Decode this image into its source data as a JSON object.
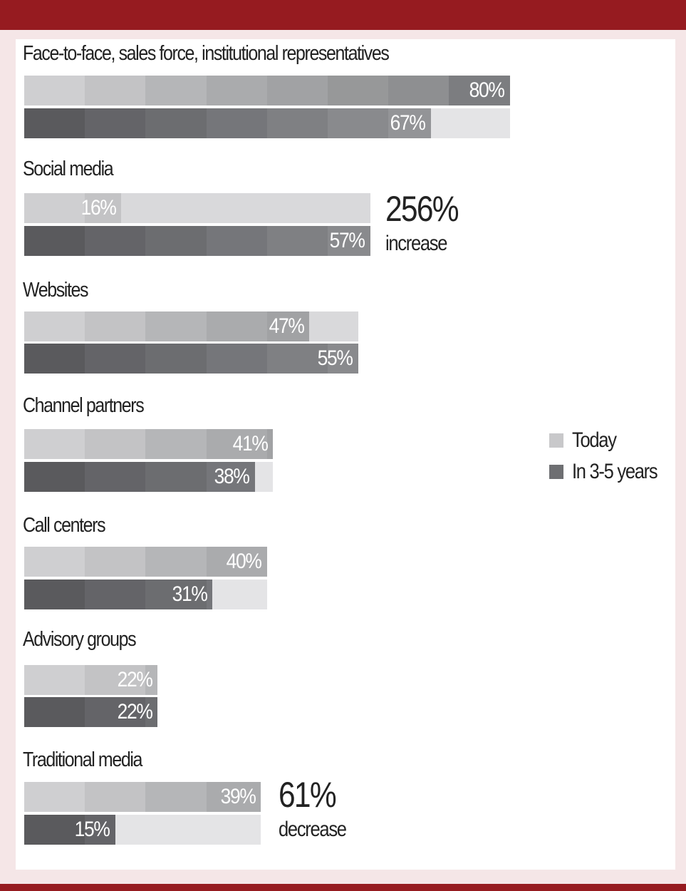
{
  "colors": {
    "brand": "#961b20",
    "today": "#cfcfd1",
    "future": "#6e6f72"
  },
  "legend": [
    {
      "label": "Today",
      "color": "#c8c8ca"
    },
    {
      "label": "In 3-5 years",
      "color": "#6e6f72"
    }
  ],
  "chart_data": {
    "type": "bar",
    "orientation": "horizontal",
    "categories": [
      "Face-to-face, sales force, institutional representatives",
      "Social media",
      "Websites",
      "Channel partners",
      "Call centers",
      "Advisory groups",
      "Traditional media"
    ],
    "series": [
      {
        "name": "Today",
        "values": [
          80,
          16,
          47,
          41,
          40,
          22,
          39
        ],
        "labels": [
          "80%",
          "16%",
          "47%",
          "41%",
          "40%",
          "22%",
          "39%"
        ]
      },
      {
        "name": "In 3-5 years",
        "values": [
          67,
          57,
          55,
          38,
          31,
          22,
          15
        ],
        "labels": [
          "67%",
          "57%",
          "55%",
          "38%",
          "31%",
          "22%",
          "15%"
        ]
      }
    ],
    "annotations": [
      {
        "category": "Social media",
        "value": "256%",
        "text": "increase"
      },
      {
        "category": "Traditional media",
        "value": "61%",
        "text": "decrease"
      }
    ],
    "xlim": [
      0,
      100
    ],
    "legend_position": "right"
  }
}
